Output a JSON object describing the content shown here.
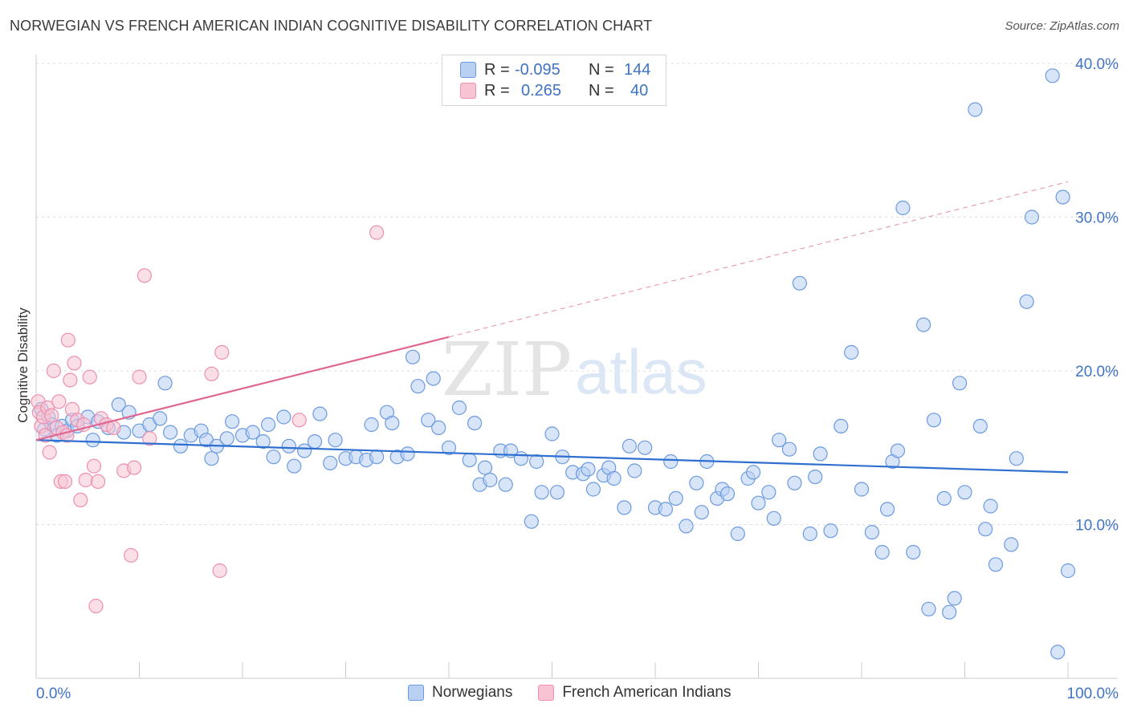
{
  "title": "NORWEGIAN VS FRENCH AMERICAN INDIAN COGNITIVE DISABILITY CORRELATION CHART",
  "source": "Source: ZipAtlas.com",
  "watermark": {
    "zip": "ZIP",
    "atlas": "atlas"
  },
  "legend": {
    "r_label": "R =",
    "n_label": "N =",
    "rows": [
      {
        "r": "-0.095",
        "n": "144",
        "fill": "#b8d0f2",
        "stroke": "#6b9ae0"
      },
      {
        "r": "0.265",
        "n": "40",
        "fill": "#f8c4d4",
        "stroke": "#ee8fae"
      }
    ]
  },
  "bottom_legend": [
    "Norwegians",
    "French American Indians"
  ],
  "chart_data": {
    "type": "scatter",
    "ylabel": "Cognitive Disability",
    "x_ticks": [
      "0.0%",
      "100.0%"
    ],
    "y_ticks": [
      "10.0%",
      "20.0%",
      "30.0%",
      "40.0%"
    ],
    "xlim": [
      0,
      100
    ],
    "ylim": [
      0,
      42
    ],
    "grid": "horizontal dashed",
    "series": [
      {
        "name": "Norwegians",
        "color": "#6b9ae0",
        "fill": "#b8d0f2",
        "trend": {
          "x": [
            0,
            100
          ],
          "y": [
            15.5,
            13.4
          ],
          "style": "solid"
        },
        "points": [
          [
            0.5,
            17.5
          ],
          [
            0.8,
            16.2
          ],
          [
            1.2,
            17.0
          ],
          [
            1.5,
            16.5
          ],
          [
            2,
            15.8
          ],
          [
            2.5,
            16.4
          ],
          [
            3,
            16.1
          ],
          [
            3.5,
            16.8
          ],
          [
            4,
            16.4
          ],
          [
            5,
            17.0
          ],
          [
            5.5,
            15.5
          ],
          [
            6,
            16.7
          ],
          [
            7,
            16.3
          ],
          [
            8,
            17.8
          ],
          [
            8.5,
            16.0
          ],
          [
            9,
            17.3
          ],
          [
            10,
            16.1
          ],
          [
            11,
            16.5
          ],
          [
            12,
            16.9
          ],
          [
            12.5,
            19.2
          ],
          [
            13,
            16.0
          ],
          [
            14,
            15.1
          ],
          [
            15,
            15.8
          ],
          [
            16,
            16.1
          ],
          [
            16.5,
            15.5
          ],
          [
            17,
            14.3
          ],
          [
            17.5,
            15.1
          ],
          [
            18.5,
            15.6
          ],
          [
            19,
            16.7
          ],
          [
            20,
            15.8
          ],
          [
            21,
            16.0
          ],
          [
            22,
            15.4
          ],
          [
            22.5,
            16.5
          ],
          [
            23,
            14.4
          ],
          [
            24,
            17.0
          ],
          [
            24.5,
            15.1
          ],
          [
            25,
            13.8
          ],
          [
            26,
            14.8
          ],
          [
            27,
            15.4
          ],
          [
            27.5,
            17.2
          ],
          [
            28.5,
            14.0
          ],
          [
            29,
            15.5
          ],
          [
            30,
            14.3
          ],
          [
            31,
            14.4
          ],
          [
            32,
            14.2
          ],
          [
            32.5,
            16.5
          ],
          [
            33,
            14.4
          ],
          [
            34,
            17.3
          ],
          [
            34.5,
            16.6
          ],
          [
            35,
            14.4
          ],
          [
            36,
            14.6
          ],
          [
            36.5,
            20.9
          ],
          [
            37,
            19.0
          ],
          [
            38,
            16.8
          ],
          [
            38.5,
            19.5
          ],
          [
            39,
            16.3
          ],
          [
            40,
            15.0
          ],
          [
            41,
            17.6
          ],
          [
            42,
            14.2
          ],
          [
            42.5,
            16.6
          ],
          [
            43,
            12.6
          ],
          [
            43.5,
            13.7
          ],
          [
            44,
            12.9
          ],
          [
            45,
            14.8
          ],
          [
            45.5,
            12.6
          ],
          [
            46,
            14.8
          ],
          [
            47,
            14.3
          ],
          [
            48,
            10.2
          ],
          [
            48.5,
            14.1
          ],
          [
            49,
            12.1
          ],
          [
            50,
            15.9
          ],
          [
            50.5,
            12.1
          ],
          [
            51,
            14.4
          ],
          [
            52,
            13.4
          ],
          [
            53,
            13.3
          ],
          [
            53.5,
            13.6
          ],
          [
            54,
            12.3
          ],
          [
            55,
            13.2
          ],
          [
            55.5,
            13.7
          ],
          [
            56,
            13.0
          ],
          [
            57,
            11.1
          ],
          [
            57.5,
            15.1
          ],
          [
            58,
            13.5
          ],
          [
            59,
            15.0
          ],
          [
            60,
            11.1
          ],
          [
            61,
            11.0
          ],
          [
            61.5,
            14.1
          ],
          [
            62,
            11.7
          ],
          [
            63,
            9.9
          ],
          [
            64,
            12.7
          ],
          [
            64.5,
            10.8
          ],
          [
            65,
            14.1
          ],
          [
            66,
            11.7
          ],
          [
            66.5,
            12.3
          ],
          [
            67,
            12.0
          ],
          [
            68,
            9.4
          ],
          [
            69,
            13.0
          ],
          [
            69.5,
            13.4
          ],
          [
            70,
            11.4
          ],
          [
            71,
            12.1
          ],
          [
            71.5,
            10.4
          ],
          [
            72,
            15.5
          ],
          [
            73,
            14.9
          ],
          [
            73.5,
            12.7
          ],
          [
            74,
            25.7
          ],
          [
            75,
            9.4
          ],
          [
            75.5,
            13.1
          ],
          [
            76,
            14.6
          ],
          [
            77,
            9.6
          ],
          [
            78,
            16.4
          ],
          [
            79,
            21.2
          ],
          [
            80,
            12.3
          ],
          [
            81,
            9.5
          ],
          [
            82,
            8.2
          ],
          [
            82.5,
            11.0
          ],
          [
            83,
            14.1
          ],
          [
            83.5,
            14.8
          ],
          [
            84,
            30.6
          ],
          [
            85,
            8.2
          ],
          [
            86,
            23.0
          ],
          [
            86.5,
            4.5
          ],
          [
            87,
            16.8
          ],
          [
            88,
            11.7
          ],
          [
            88.5,
            4.3
          ],
          [
            89,
            5.2
          ],
          [
            89.5,
            19.2
          ],
          [
            90,
            12.1
          ],
          [
            91,
            37.0
          ],
          [
            91.5,
            16.4
          ],
          [
            92,
            9.7
          ],
          [
            92.5,
            11.2
          ],
          [
            93,
            7.4
          ],
          [
            94.5,
            8.7
          ],
          [
            95,
            14.3
          ],
          [
            96,
            24.5
          ],
          [
            96.5,
            30.0
          ],
          [
            98.5,
            39.2
          ],
          [
            99,
            1.7
          ],
          [
            99.5,
            31.3
          ],
          [
            100,
            7.0
          ]
        ]
      },
      {
        "name": "French American Indians",
        "color": "#ee8fae",
        "fill": "#f8c4d4",
        "trend": {
          "x": [
            0,
            40
          ],
          "y": [
            15.5,
            22.2
          ],
          "style": "solid"
        },
        "trend_extension": {
          "x": [
            40,
            100
          ],
          "y": [
            22.2,
            32.3
          ],
          "style": "dashed"
        },
        "points": [
          [
            0.2,
            18.0
          ],
          [
            0.3,
            17.3
          ],
          [
            0.5,
            16.4
          ],
          [
            0.7,
            17.0
          ],
          [
            0.9,
            15.8
          ],
          [
            1.1,
            17.6
          ],
          [
            1.3,
            14.7
          ],
          [
            1.5,
            17.1
          ],
          [
            1.7,
            20.0
          ],
          [
            2,
            16.3
          ],
          [
            2.2,
            18.0
          ],
          [
            2.4,
            12.8
          ],
          [
            2.6,
            16.0
          ],
          [
            2.8,
            12.8
          ],
          [
            3,
            15.8
          ],
          [
            3.1,
            22.0
          ],
          [
            3.3,
            19.4
          ],
          [
            3.5,
            17.5
          ],
          [
            3.7,
            20.5
          ],
          [
            4,
            16.8
          ],
          [
            4.3,
            11.6
          ],
          [
            4.6,
            16.5
          ],
          [
            4.8,
            12.9
          ],
          [
            5.2,
            19.6
          ],
          [
            5.6,
            13.8
          ],
          [
            5.8,
            4.7
          ],
          [
            6,
            12.8
          ],
          [
            6.3,
            16.9
          ],
          [
            6.8,
            16.5
          ],
          [
            7.5,
            16.3
          ],
          [
            8.5,
            13.5
          ],
          [
            9.2,
            8.0
          ],
          [
            9.5,
            13.7
          ],
          [
            10,
            19.6
          ],
          [
            10.5,
            26.2
          ],
          [
            11,
            15.6
          ],
          [
            17,
            19.8
          ],
          [
            17.8,
            7.0
          ],
          [
            18,
            21.2
          ],
          [
            25.5,
            16.8
          ],
          [
            33,
            29.0
          ]
        ]
      }
    ]
  }
}
